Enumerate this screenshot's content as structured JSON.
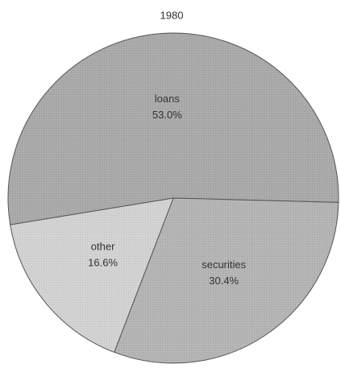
{
  "chart_data": {
    "type": "pie",
    "title": "1980",
    "categories": [
      "loans",
      "securities",
      "other"
    ],
    "values": [
      53.0,
      30.4,
      16.6
    ],
    "value_labels": [
      "53.0%",
      "30.4%",
      "16.6%"
    ],
    "colors": [
      "#a9a9a9",
      "#b4b4b4",
      "#d2d2d2"
    ]
  }
}
